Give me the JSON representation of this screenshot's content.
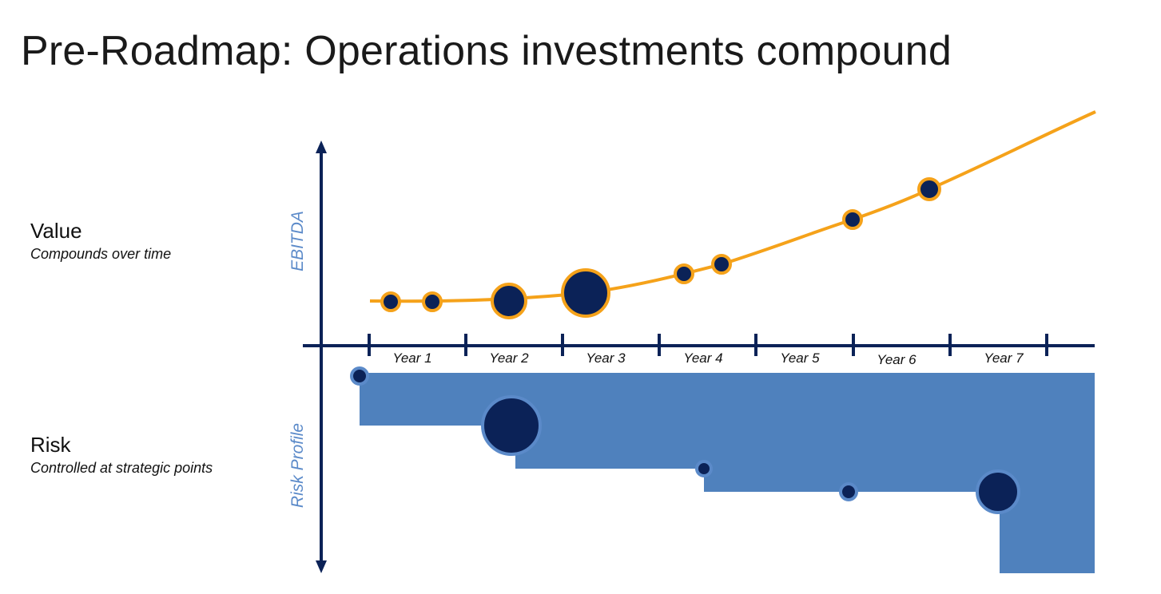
{
  "title": "Pre-Roadmap: Operations investments compound",
  "value": {
    "heading": "Value",
    "subtitle": "Compounds over time"
  },
  "risk": {
    "heading": "Risk",
    "subtitle": "Controlled at strategic points"
  },
  "axes": {
    "y_upper_label": "EBITDA",
    "y_lower_label": "Risk Profile"
  },
  "years": [
    "Year 1",
    "Year 2",
    "Year 3",
    "Year 4",
    "Year 5",
    "Year 6",
    "Year 7"
  ],
  "colors": {
    "navy": "#0b2257",
    "orange": "#f5a21a",
    "risk_fill": "#4f81bd",
    "axis_label": "#5b8ac9"
  }
}
